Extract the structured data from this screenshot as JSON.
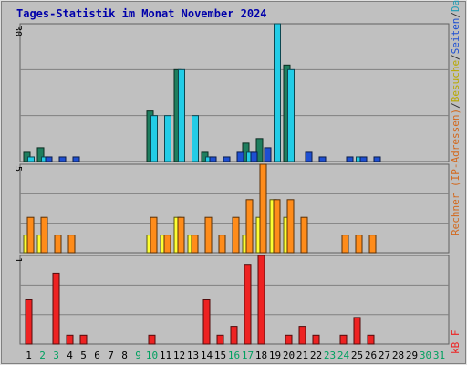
{
  "chart_data": {
    "type": "bar",
    "title": "Tages-Statistik im Monat November 2024",
    "categories": [
      "1",
      "2",
      "3",
      "4",
      "5",
      "6",
      "7",
      "8",
      "9",
      "10",
      "11",
      "12",
      "13",
      "14",
      "15",
      "16",
      "17",
      "18",
      "19",
      "20",
      "21",
      "22",
      "23",
      "24",
      "25",
      "26",
      "27",
      "28",
      "29",
      "30",
      "31"
    ],
    "weekend_days": [
      2,
      3,
      9,
      10,
      16,
      17,
      23,
      24,
      30,
      31
    ],
    "panels": [
      {
        "name": "requests",
        "ymax_label": "30",
        "ymax": 30,
        "gridlines": [
          10,
          20
        ],
        "series": [
          {
            "name": "Anfragen",
            "color": "#1E7E5E",
            "values": [
              2,
              3,
              0,
              0,
              0,
              0,
              0,
              0,
              0,
              11,
              0,
              20,
              0,
              2,
              0,
              0,
              4,
              5,
              0,
              21,
              0,
              0,
              0,
              0,
              0,
              0,
              0,
              0,
              0,
              0,
              0
            ]
          },
          {
            "name": "Dateien",
            "color": "#22CCE6",
            "values": [
              1,
              1,
              0,
              0,
              0,
              0,
              0,
              0,
              0,
              10,
              10,
              20,
              10,
              1,
              0,
              0,
              2,
              0,
              30,
              20,
              0,
              0,
              0,
              0,
              1,
              0,
              0,
              0,
              0,
              0,
              0
            ]
          },
          {
            "name": "Seiten",
            "color": "#1E4FD2",
            "values": [
              0,
              1,
              1,
              1,
              0,
              0,
              0,
              0,
              0,
              0,
              0,
              0,
              0,
              1,
              1,
              2,
              2,
              3,
              0,
              0,
              2,
              1,
              0,
              1,
              1,
              1,
              0,
              0,
              0,
              0,
              0
            ]
          }
        ]
      },
      {
        "name": "visits",
        "ymax_label": "5",
        "ymax": 5,
        "gridlines": [
          1.666,
          3.333
        ],
        "series": [
          {
            "name": "Besuche",
            "color": "#FFFF33",
            "values": [
              1,
              1,
              0,
              0,
              0,
              0,
              0,
              0,
              0,
              1,
              1,
              2,
              1,
              0,
              0,
              0,
              1,
              2,
              3,
              2,
              0,
              0,
              0,
              0,
              0,
              0,
              0,
              0,
              0,
              0,
              0
            ]
          },
          {
            "name": "Rechner (IP-Adressen)",
            "color": "#FF8C1A",
            "values": [
              2,
              2,
              1,
              1,
              0,
              0,
              0,
              0,
              0,
              2,
              1,
              2,
              1,
              2,
              1,
              2,
              3,
              5,
              3,
              3,
              2,
              0,
              0,
              1,
              1,
              1,
              0,
              0,
              0,
              0,
              0
            ]
          }
        ]
      },
      {
        "name": "kbytes",
        "ymax_label": "1",
        "ymax": 1,
        "gridlines": [
          0.333,
          0.666
        ],
        "series": [
          {
            "name": "kB F",
            "color": "#EE2222",
            "values": [
              0.5,
              0.0,
              0.8,
              0.1,
              0.1,
              0,
              0,
              0,
              0,
              0.1,
              0,
              0,
              0,
              0.5,
              0.1,
              0.2,
              0.9,
              1.0,
              0,
              0.1,
              0.2,
              0.1,
              0,
              0.1,
              0.3,
              0.1,
              0,
              0,
              0,
              0,
              0
            ]
          }
        ]
      }
    ],
    "right_label_parts": [
      {
        "text": "Rechner (IP-Adressen)",
        "color": "#D2691E"
      },
      {
        "text": "/",
        "color": "#333333"
      },
      {
        "text": "Besuche",
        "color": "#B8A800"
      },
      {
        "text": "/",
        "color": "#333333"
      },
      {
        "text": "Seiten",
        "color": "#1E4FD2"
      },
      {
        "text": "/",
        "color": "#333333"
      },
      {
        "text": "Dateien",
        "color": "#1E9BB4"
      },
      {
        "text": "/",
        "color": "#333333"
      },
      {
        "text": "Anfragen",
        "color": "#1E7E5E"
      }
    ],
    "right_label_bottom": {
      "text": "kB F",
      "color": "#EE2222"
    },
    "colors": {
      "title": "#0000AA",
      "plot_bg": "#C0C0C0",
      "grid": "#808080",
      "weekday_label": "#000000",
      "weekend_label": "#00A060"
    }
  }
}
